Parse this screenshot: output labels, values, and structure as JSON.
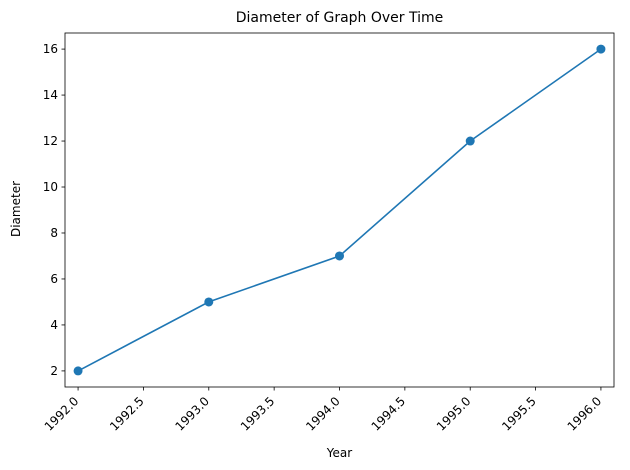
{
  "chart_data": {
    "type": "line",
    "title": "Diameter of Graph Over Time",
    "xlabel": "Year",
    "ylabel": "Diameter",
    "x": [
      1992,
      1993,
      1994,
      1995,
      1996
    ],
    "series": [
      {
        "values": [
          2,
          5,
          7,
          12,
          16
        ],
        "color": "#1f77b4",
        "marker": "circle"
      }
    ],
    "xlim": [
      1991.9,
      1996.1
    ],
    "ylim": [
      1.3,
      16.7
    ],
    "xticks": [
      1992.0,
      1992.5,
      1993.0,
      1993.5,
      1994.0,
      1994.5,
      1995.0,
      1995.5,
      1996.0
    ],
    "xtick_labels": [
      "1992.0",
      "1992.5",
      "1993.0",
      "1993.5",
      "1994.0",
      "1994.5",
      "1995.0",
      "1995.5",
      "1996.0"
    ],
    "xtick_rotation": 45,
    "yticks": [
      2,
      4,
      6,
      8,
      10,
      12,
      14,
      16
    ],
    "ytick_labels": [
      "2",
      "4",
      "6",
      "8",
      "10",
      "12",
      "14",
      "16"
    ],
    "grid": false,
    "legend": false
  }
}
